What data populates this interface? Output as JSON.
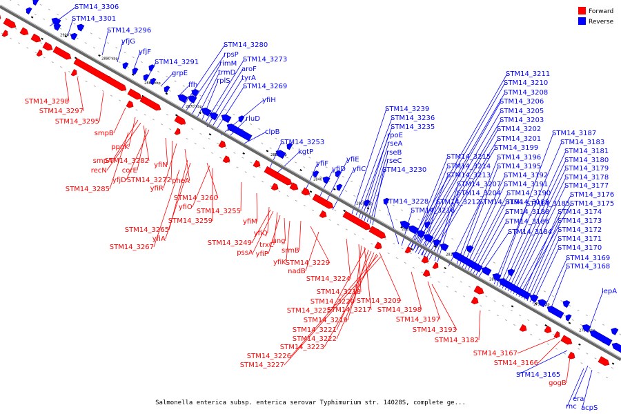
{
  "colors": {
    "forward": "#ff0000",
    "reverse": "#0000ff",
    "backbone": "#666666"
  },
  "legend": [
    {
      "label": "Forward",
      "color": "#ff0000"
    },
    {
      "label": "Reverse",
      "color": "#0000ff"
    }
  ],
  "caption": "Salmonella enterica subsp. enterica serovar Typhimurium str. 14028S, complete ge...",
  "ticks": [
    "2900 kbp",
    "2890 kbp",
    "2880 kbp",
    "2870 kbp",
    "2860 kbp",
    "2850 kbp",
    "2840 kbp",
    "2830 kbp",
    "2820 kbp",
    "2810 kbp",
    "2800 kbp",
    "2790 kbp",
    "2780 kbp"
  ],
  "labels_reverse": [
    "STM14_3306",
    "STM14_3301",
    "STM14_3296",
    "yfjG",
    "yfjF",
    "STM14_3291",
    "grpE",
    "ffh",
    "STM14_3280",
    "rpsP",
    "rimM",
    "trmD",
    "rplS",
    "STM14_3273",
    "aroF",
    "tyrA",
    "STM14_3269",
    "yfiH",
    "rluD",
    "clpB",
    "STM14_3253",
    "kgtP",
    "yfiF",
    "yfiD",
    "yfiE",
    "yfiC",
    "STM14_3239",
    "STM14_3236",
    "STM14_3235",
    "rpoE",
    "rseA",
    "rseB",
    "rseC",
    "STM14_3230",
    "STM14_3228",
    "STM14_3216",
    "STM14_3211",
    "STM14_3210",
    "STM14_3208",
    "STM14_3206",
    "STM14_3205",
    "STM14_3203",
    "STM14_3202",
    "STM14_3201",
    "STM14_3199",
    "STM14_3196",
    "STM14_3195",
    "STM14_3192",
    "STM14_3191",
    "STM14_3190",
    "STM14_3189",
    "STM14_3188",
    "STM14_3186",
    "STM14_3184",
    "STM14_3215",
    "STM14_3214",
    "STM14_3213",
    "STM14_3207",
    "STM14_3204",
    "STM14_3212",
    "STM14_3194",
    "STM14_3187",
    "STM14_3183",
    "STM14_3181",
    "STM14_3180",
    "STM14_3179",
    "STM14_3178",
    "STM14_3177",
    "STM14_3176",
    "STM14_3175",
    "STM14_3185",
    "STM14_3174",
    "STM14_3173",
    "STM14_3172",
    "STM14_3171",
    "STM14_3170",
    "STM14_3169",
    "STM14_3168",
    "lepA",
    "STM14_3165",
    "era",
    "rnc",
    "acpS"
  ],
  "labels_forward": [
    "STM14_3298",
    "STM14_3297",
    "STM14_3295",
    "smpB",
    "ppnK",
    "smpA",
    "recN",
    "STM14_3282",
    "corE",
    "yfjD",
    "yfiN",
    "STM14_3285",
    "STM14_3272",
    "yfiR",
    "pheA",
    "STM14_3260",
    "yfiO",
    "STM14_3255",
    "STM14_3259",
    "yfiM",
    "STM14_3265",
    "yfiA",
    "STM14_3267",
    "yfiQ",
    "STM14_3249",
    "pssA",
    "trxC",
    "yfiP",
    "ung",
    "srmB",
    "yfiK",
    "STM14_3229",
    "nadB",
    "STM14_3224",
    "STM14_3218",
    "STM14_3220",
    "STM14_3217",
    "STM14_3209",
    "STM14_3225",
    "STM14_3219",
    "STM14_3221",
    "STM14_3222",
    "STM14_3223",
    "STM14_3226",
    "STM14_3227",
    "STM14_3198",
    "STM14_3197",
    "STM14_3193",
    "STM14_3182",
    "STM14_3167",
    "STM14_3166",
    "gogB"
  ]
}
